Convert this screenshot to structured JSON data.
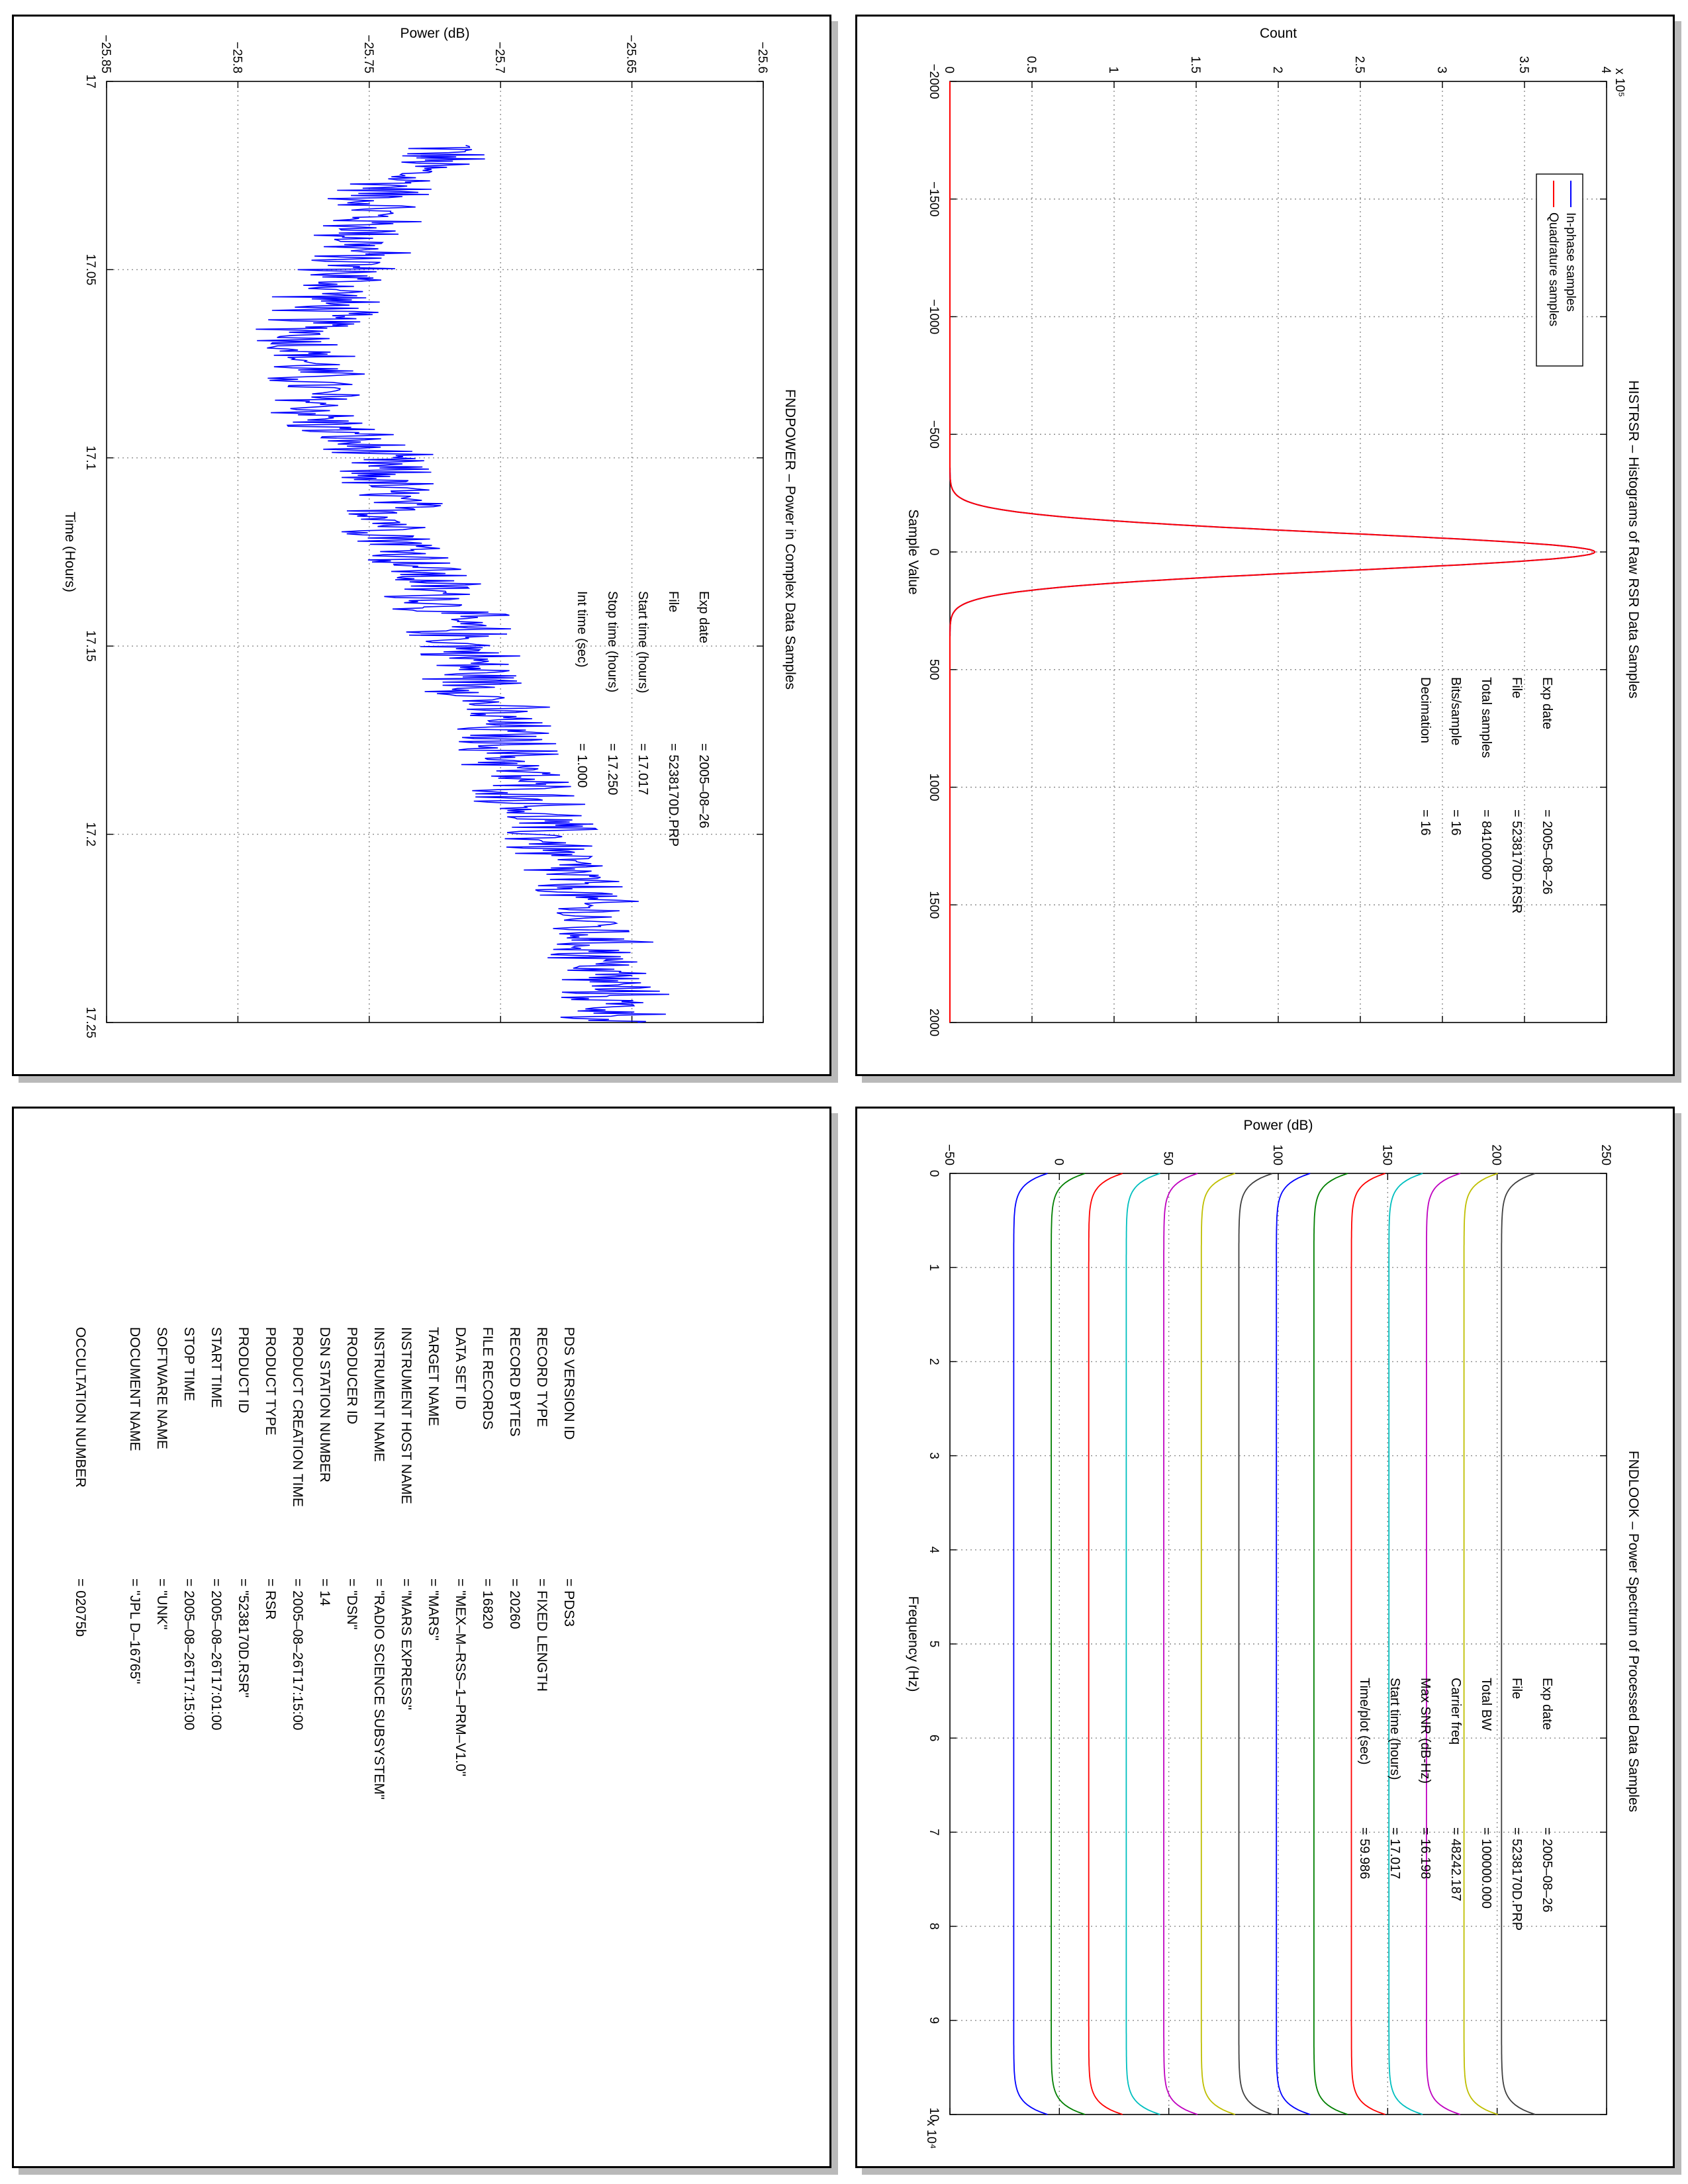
{
  "panels": {
    "power": {
      "title": "FNDPOWER – Power in Complex Data Samples",
      "info": [
        {
          "label": "Exp date",
          "value": "= 2005–08–26"
        },
        {
          "label": "File",
          "value": "= 5238170D.PRP"
        },
        {
          "label": "Start time (hours)",
          "value": "= 17.017"
        },
        {
          "label": "Stop time (hours)",
          "value": "= 17.250"
        },
        {
          "label": "Int time (sec)",
          "value": "=       1.000"
        }
      ]
    },
    "hist": {
      "title": "HISTRSR – Histograms of Raw RSR Data Samples",
      "info": [
        {
          "label": "Exp date",
          "value": "= 2005–08–26"
        },
        {
          "label": "File",
          "value": "= 5238170D.RSR"
        },
        {
          "label": "Total samples",
          "value": "=   84100000"
        },
        {
          "label": "Bits/sample",
          "value": "=        16"
        },
        {
          "label": "Decimation",
          "value": "=        16"
        }
      ]
    },
    "look": {
      "title": "FNDLOOK – Power Spectrum of Processed Data Samples",
      "info": [
        {
          "label": "Exp date",
          "value": "= 2005–08–26"
        },
        {
          "label": "File",
          "value": "= 5238170D.PRP"
        },
        {
          "label": "Total BW",
          "value": "=   100000.000"
        },
        {
          "label": "Carrier freq",
          "value": "=   48242.187"
        },
        {
          "label": "Max SNR (dB-Hz)",
          "value": "=     16.198"
        },
        {
          "label": "Start time (hours)",
          "value": "=   17.017"
        },
        {
          "label": "Time/plot (sec)",
          "value": "=     59.986"
        }
      ]
    },
    "label": {
      "rows": [
        {
          "key": "PDS VERSION ID",
          "value": "=  PDS3"
        },
        {
          "key": "RECORD TYPE",
          "value": "=  FIXED LENGTH"
        },
        {
          "key": "RECORD BYTES",
          "value": "=  20260"
        },
        {
          "key": "FILE RECORDS",
          "value": "=  16820"
        },
        {
          "key": "DATA SET ID",
          "value": "=  \"MEX–M–RSS–1–PRM–V1.0\""
        },
        {
          "key": "TARGET NAME",
          "value": "=  \"MARS\""
        },
        {
          "key": "INSTRUMENT HOST NAME",
          "value": "=  \"MARS EXPRESS\""
        },
        {
          "key": "INSTRUMENT NAME",
          "value": "=  \"RADIO SCIENCE SUBSYSTEM\""
        },
        {
          "key": "PRODUCER ID",
          "value": "=  \"DSN\""
        },
        {
          "key": "DSN STATION NUMBER",
          "value": "=  14"
        },
        {
          "key": "PRODUCT CREATION TIME",
          "value": "=  2005–08–26T17:15:00"
        },
        {
          "key": "PRODUCT TYPE",
          "value": "=  RSR"
        },
        {
          "key": "PRODUCT ID",
          "value": "=  \"5238170D.RSR\""
        },
        {
          "key": "START TIME",
          "value": "=  2005–08–26T17:01:00"
        },
        {
          "key": "STOP TIME",
          "value": "=  2005–08–26T17:15:00"
        },
        {
          "key": "SOFTWARE NAME",
          "value": "=  \"UNK\""
        },
        {
          "key": "DOCUMENT NAME",
          "value": "=  \"JPL D–16765\""
        },
        {
          "key": "",
          "value": ""
        },
        {
          "key": "OCCULTATION NUMBER",
          "value": "=  02075b"
        }
      ]
    }
  },
  "chart_data": [
    {
      "id": "power",
      "type": "line",
      "title": "FNDPOWER – Power in Complex Data Samples",
      "xlabel": "Time (Hours)",
      "ylabel": "Power (dB)",
      "xlim": [
        17.0,
        17.25
      ],
      "ylim": [
        -25.85,
        -25.6
      ],
      "xticks": [
        "17",
        "17.05",
        "17.1",
        "17.15",
        "17.2",
        "17.25"
      ],
      "yticks": [
        "−25.85",
        "−25.8",
        "−25.75",
        "−25.7",
        "−25.65",
        "−25.6"
      ],
      "series": [
        {
          "color": "#0000ff",
          "x_start": 17.017,
          "x_end": 17.25,
          "trend_x": [
            17.017,
            17.03,
            17.05,
            17.07,
            17.09,
            17.1,
            17.12,
            17.15,
            17.17,
            17.2,
            17.22,
            17.25
          ],
          "trend_y": [
            -25.718,
            -25.745,
            -25.758,
            -25.775,
            -25.768,
            -25.748,
            -25.738,
            -25.713,
            -25.702,
            -25.683,
            -25.668,
            -25.655
          ],
          "noise_amplitude_db": 0.018
        }
      ]
    },
    {
      "id": "hist",
      "type": "line",
      "title": "HISTRSR – Histograms of Raw RSR Data Samples",
      "xlabel": "Sample Value",
      "ylabel": "Count",
      "y_multiplier": "x 10⁵",
      "xlim": [
        -2000,
        2000
      ],
      "ylim": [
        0,
        450000
      ],
      "xticks": [
        "−2000",
        "−1500",
        "−1000",
        "−500",
        "0",
        "500",
        "1000",
        "1500",
        "2000"
      ],
      "yticks": [
        "0",
        "0.5",
        "1",
        "1.5",
        "2",
        "2.5",
        "3",
        "3.5",
        "4"
      ],
      "legend": [
        {
          "name": "In-phase samples",
          "color": "#0000ff"
        },
        {
          "name": "Quadrature samples",
          "color": "#ff0000"
        }
      ],
      "legend_position": "top-right",
      "series": [
        {
          "name": "In-phase samples",
          "color": "#0000ff",
          "shape": "gaussian",
          "peak": 442000,
          "mean": 0,
          "sigma": 80
        },
        {
          "name": "Quadrature samples",
          "color": "#ff0000",
          "shape": "gaussian",
          "peak": 442000,
          "mean": 0,
          "sigma": 80
        }
      ]
    },
    {
      "id": "look",
      "type": "line",
      "title": "FNDLOOK – Power Spectrum of Processed Data Samples",
      "xlabel": "Frequency (Hz)",
      "ylabel": "Power (dB)",
      "x_multiplier": "x 10⁴",
      "xlim": [
        0,
        100000
      ],
      "ylim": [
        -80,
        270
      ],
      "xticks": [
        "0",
        "1",
        "2",
        "3",
        "4",
        "5",
        "6",
        "7",
        "8",
        "9",
        "10"
      ],
      "yticks": [
        "−50",
        "0",
        "50",
        "100",
        "150",
        "200",
        "250"
      ],
      "rolloff_hz": 2500,
      "drop_db": 18,
      "series": [
        {
          "color": "#0000ff",
          "level": -46
        },
        {
          "color": "#007f00",
          "level": -26
        },
        {
          "color": "#ff0000",
          "level": -6
        },
        {
          "color": "#00bfbf",
          "level": 14
        },
        {
          "color": "#bf00bf",
          "level": 34
        },
        {
          "color": "#bfbf00",
          "level": 54
        },
        {
          "color": "#3f3f3f",
          "level": 74
        },
        {
          "color": "#0000ff",
          "level": 94
        },
        {
          "color": "#007f00",
          "level": 114
        },
        {
          "color": "#ff0000",
          "level": 134
        },
        {
          "color": "#00bfbf",
          "level": 154
        },
        {
          "color": "#bf00bf",
          "level": 174
        },
        {
          "color": "#bfbf00",
          "level": 194
        },
        {
          "color": "#3f3f3f",
          "level": 214
        }
      ]
    }
  ]
}
